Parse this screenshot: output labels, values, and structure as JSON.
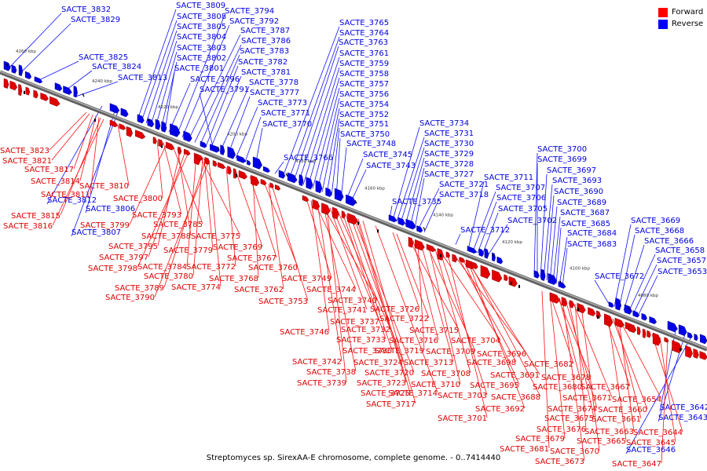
{
  "caption": "Streptomyces sp. SirexAA-E chromosome, complete genome. - 0..7414440",
  "legend": [
    {
      "label": "Forward",
      "color": "#ff0000"
    },
    {
      "label": "Reverse",
      "color": "#0000ff"
    }
  ],
  "colors": {
    "forward": "#e00000",
    "reverse": "#0000e6",
    "axis": "#808080"
  },
  "ruler": [
    "4260 kbp",
    "4240 kbp",
    "4220 kbp",
    "4200 kbp",
    "4180 kbp",
    "4160 kbp",
    "4140 kbp",
    "4120 kbp",
    "4100 kbp",
    "4080 kbp"
  ],
  "reverse_labels": [
    "SACTE_3832",
    "SACTE_3829",
    "SACTE_3825",
    "SACTE_3824",
    "SACTE_3813",
    "SACTE_3809",
    "SACTE_3808",
    "SACTE_3805",
    "SACTE_3804",
    "SACTE_3803",
    "SACTE_3802",
    "SACTE_3801",
    "SACTE_3794",
    "SACTE_3792",
    "SACTE_3787",
    "SACTE_3786",
    "SACTE_3783",
    "SACTE_3782",
    "SACTE_3781",
    "SACTE_3796",
    "SACTE_3791",
    "SACTE_3778",
    "SACTE_3777",
    "SACTE_3773",
    "SACTE_3771",
    "SACTE_3770",
    "SACTE_3765",
    "SACTE_3764",
    "SACTE_3763",
    "SACTE_3761",
    "SACTE_3759",
    "SACTE_3758",
    "SACTE_3757",
    "SACTE_3756",
    "SACTE_3754",
    "SACTE_3752",
    "SACTE_3751",
    "SACTE_3750",
    "SACTE_3748",
    "SACTE_3745",
    "SACTE_3743",
    "SACTE_3766",
    "SACTE_3734",
    "SACTE_3731",
    "SACTE_3730",
    "SACTE_3729",
    "SACTE_3728",
    "SACTE_3727",
    "SACTE_3721",
    "SACTE_3718",
    "SACTE_3735",
    "SACTE_3711",
    "SACTE_3707",
    "SACTE_3706",
    "SACTE_3705",
    "SACTE_3702",
    "SACTE_3712",
    "SACTE_3700",
    "SACTE_3699",
    "SACTE_3697",
    "SACTE_3693",
    "SACTE_3690",
    "SACTE_3689",
    "SACTE_3687",
    "SACTE_3685",
    "SACTE_3684",
    "SACTE_3683",
    "SACTE_3672",
    "SACTE_3669",
    "SACTE_3668",
    "SACTE_3666",
    "SACTE_3658",
    "SACTE_3657",
    "SACTE_3653",
    "SACTE_3812",
    "SACTE_3806",
    "SACTE_3807",
    "SACTE_3642",
    "SACTE_3643",
    "SACTE_3646"
  ],
  "forward_labels": [
    "SACTE_3823",
    "SACTE_3821",
    "SACTE_3817",
    "SACTE_3814",
    "SACTE_3811",
    "SACTE_3810",
    "SACTE_3815",
    "SACTE_3816",
    "SACTE_3800",
    "SACTE_3793",
    "SACTE_3799",
    "SACTE_3785",
    "SACTE_3788",
    "SACTE_3795",
    "SACTE_3775",
    "SACTE_3797",
    "SACTE_3779",
    "SACTE_3769",
    "SACTE_3798",
    "SACTE_3784",
    "SACTE_3772",
    "SACTE_3767",
    "SACTE_3780",
    "SACTE_3768",
    "SACTE_3760",
    "SACTE_3789",
    "SACTE_3774",
    "SACTE_3762",
    "SACTE_3749",
    "SACTE_3790",
    "SACTE_3753",
    "SACTE_3744",
    "SACTE_3740",
    "SACTE_3741",
    "SACTE_3726",
    "SACTE_3737",
    "SACTE_3722",
    "SACTE_3732",
    "SACTE_3715",
    "SACTE_3746",
    "SACTE_3733",
    "SACTE_3716",
    "SACTE_3704",
    "SACTE_3736",
    "SACTE_3719",
    "SACTE_3709",
    "SACTE_3696",
    "SACTE_3742",
    "SACTE_3724",
    "SACTE_3713",
    "SACTE_3698",
    "SACTE_3738",
    "SACTE_3720",
    "SACTE_3708",
    "SACTE_3691",
    "SACTE_3682",
    "SACTE_3739",
    "SACTE_3723",
    "SACTE_3710",
    "SACTE_3695",
    "SACTE_3678",
    "SACTE_3725",
    "SACTE_3714",
    "SACTE_3703",
    "SACTE_3688",
    "SACTE_3680",
    "SACTE_3667",
    "SACTE_3717",
    "SACTE_3692",
    "SACTE_3671",
    "SACTE_3654",
    "SACTE_3701",
    "SACTE_3674",
    "SACTE_3660",
    "SACTE_3675",
    "SACTE_3661",
    "SACTE_3676",
    "SACTE_3663",
    "SACTE_3644",
    "SACTE_3665",
    "SACTE_3645",
    "SACTE_3679",
    "SACTE_3670",
    "SACTE_3681",
    "SACTE_3673",
    "SACTE_3647"
  ]
}
